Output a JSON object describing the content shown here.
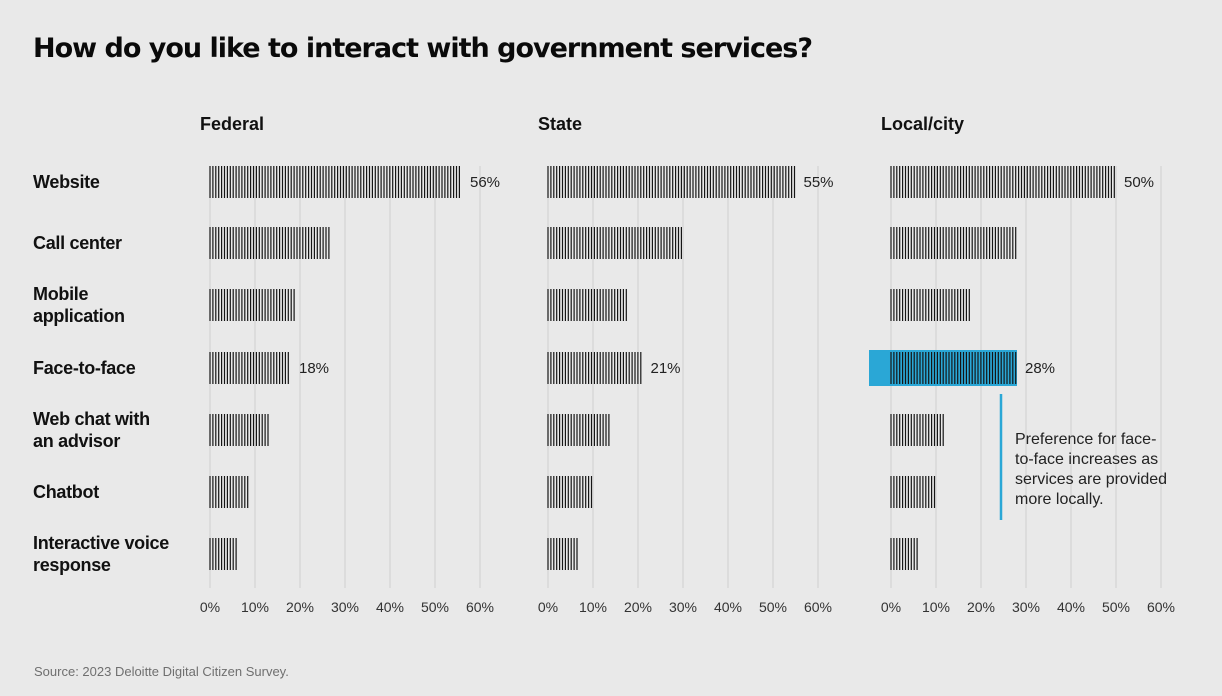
{
  "title": "How do you like to interact with government services?",
  "source": "Source: 2023 Deloitte Digital Citizen Survey.",
  "chart_data": {
    "type": "bar",
    "orientation": "horizontal",
    "categories": [
      "Website",
      "Call center",
      "Mobile application",
      "Face-to-face",
      "Web chat with an advisor",
      "Chatbot",
      "Interactive voice response"
    ],
    "category_lines": [
      [
        "Website"
      ],
      [
        "Call center"
      ],
      [
        "Mobile",
        "application"
      ],
      [
        "Face-to-face"
      ],
      [
        "Web chat with",
        "an advisor"
      ],
      [
        "Chatbot"
      ],
      [
        "Interactive voice",
        "response"
      ]
    ],
    "xlim": [
      0,
      60
    ],
    "xticks": [
      0,
      10,
      20,
      30,
      40,
      50,
      60
    ],
    "tick_suffix": "%",
    "grid": true,
    "panels": [
      {
        "title": "Federal",
        "values": [
          56,
          27,
          19,
          18,
          13,
          9,
          6
        ],
        "labels": [
          "56%",
          "",
          "",
          "18%",
          "",
          "",
          ""
        ]
      },
      {
        "title": "State",
        "values": [
          55,
          30,
          18,
          21,
          14,
          10,
          7
        ],
        "labels": [
          "55%",
          "",
          "",
          "21%",
          "",
          "",
          ""
        ]
      },
      {
        "title": "Local/city",
        "values": [
          50,
          28,
          18,
          28,
          12,
          10,
          6
        ],
        "labels": [
          "50%",
          "",
          "",
          "28%",
          "",
          "",
          ""
        ],
        "highlight_index": 3
      }
    ],
    "highlight_color": "#2aa7d6",
    "annotation": {
      "panel": 2,
      "lines": [
        "Preference for face-",
        "to-face increases as",
        "services are provided",
        "more locally."
      ]
    }
  }
}
